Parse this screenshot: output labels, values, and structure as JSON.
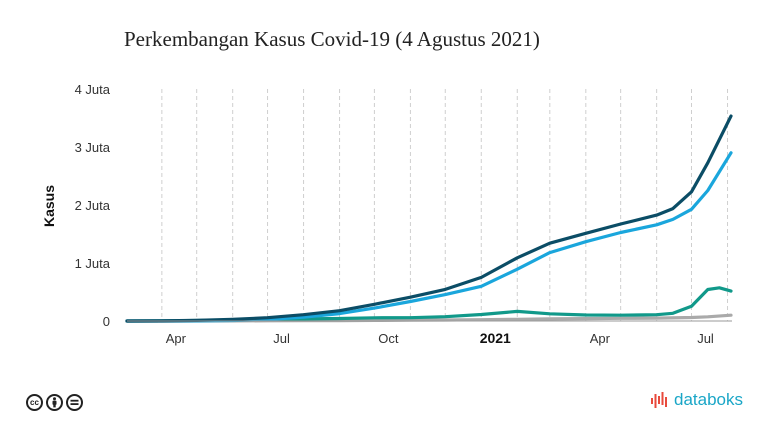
{
  "title": "Perkembangan Kasus Covid-19 (4 Agustus 2021)",
  "brand": "databoks",
  "license_icons": [
    "cc-icon",
    "attribution-icon",
    "no-derivatives-icon"
  ],
  "chart_data": {
    "type": "line",
    "title": "Perkembangan Kasus Covid-19 (4 Agustus 2021)",
    "ylabel": "Kasus",
    "xlabel": "",
    "xlim": [
      "2020-03-02",
      "2021-08-04"
    ],
    "ylim": [
      0,
      4000000
    ],
    "yticks": [
      {
        "value": 0,
        "label": "0"
      },
      {
        "value": 1000000,
        "label": "1 Juta"
      },
      {
        "value": 2000000,
        "label": "2 Juta"
      },
      {
        "value": 3000000,
        "label": "3 Juta"
      },
      {
        "value": 4000000,
        "label": "4 Juta"
      }
    ],
    "xticks": [
      {
        "date": "2020-04-01",
        "label": "Apr",
        "bold": false
      },
      {
        "date": "2020-07-01",
        "label": "Jul",
        "bold": false
      },
      {
        "date": "2020-10-01",
        "label": "Oct",
        "bold": false
      },
      {
        "date": "2021-01-01",
        "label": "2021",
        "bold": true
      },
      {
        "date": "2021-04-01",
        "label": "Apr",
        "bold": false
      },
      {
        "date": "2021-07-01",
        "label": "Jul",
        "bold": false
      }
    ],
    "grid": "vertical-dashed",
    "legend": "none",
    "series": [
      {
        "color": "#0b4d66",
        "points": [
          [
            "2020-03-02",
            0
          ],
          [
            "2020-04-01",
            1700
          ],
          [
            "2020-05-01",
            10500
          ],
          [
            "2020-06-01",
            27000
          ],
          [
            "2020-07-01",
            57000
          ],
          [
            "2020-08-01",
            109000
          ],
          [
            "2020-09-01",
            177000
          ],
          [
            "2020-10-01",
            288000
          ],
          [
            "2020-11-01",
            410000
          ],
          [
            "2020-12-01",
            544000
          ],
          [
            "2021-01-01",
            751000
          ],
          [
            "2021-02-01",
            1089000
          ],
          [
            "2021-03-01",
            1341000
          ],
          [
            "2021-04-01",
            1512000
          ],
          [
            "2021-05-01",
            1672000
          ],
          [
            "2021-06-01",
            1826000
          ],
          [
            "2021-06-15",
            1938000
          ],
          [
            "2021-07-01",
            2228000
          ],
          [
            "2021-07-15",
            2727000
          ],
          [
            "2021-08-04",
            3532000
          ]
        ]
      },
      {
        "color": "#1aa6dc",
        "points": [
          [
            "2020-03-02",
            0
          ],
          [
            "2020-04-01",
            100
          ],
          [
            "2020-05-01",
            2000
          ],
          [
            "2020-06-01",
            8000
          ],
          [
            "2020-07-01",
            26000
          ],
          [
            "2020-08-01",
            68000
          ],
          [
            "2020-09-01",
            127000
          ],
          [
            "2020-10-01",
            223000
          ],
          [
            "2020-11-01",
            337000
          ],
          [
            "2020-12-01",
            455000
          ],
          [
            "2021-01-01",
            598000
          ],
          [
            "2021-02-01",
            893000
          ],
          [
            "2021-03-01",
            1180000
          ],
          [
            "2021-04-01",
            1367000
          ],
          [
            "2021-05-01",
            1526000
          ],
          [
            "2021-06-01",
            1659000
          ],
          [
            "2021-06-15",
            1751000
          ],
          [
            "2021-07-01",
            1925000
          ],
          [
            "2021-07-15",
            2250000
          ],
          [
            "2021-08-04",
            2900000
          ]
        ]
      },
      {
        "color": "#11998a",
        "points": [
          [
            "2020-03-02",
            0
          ],
          [
            "2020-04-01",
            1500
          ],
          [
            "2020-05-01",
            8000
          ],
          [
            "2020-06-01",
            17000
          ],
          [
            "2020-07-01",
            28000
          ],
          [
            "2020-08-01",
            37000
          ],
          [
            "2020-09-01",
            43000
          ],
          [
            "2020-10-01",
            55000
          ],
          [
            "2020-11-01",
            57000
          ],
          [
            "2020-12-01",
            74000
          ],
          [
            "2021-01-01",
            112000
          ],
          [
            "2021-02-01",
            166000
          ],
          [
            "2021-03-01",
            125000
          ],
          [
            "2021-04-01",
            104000
          ],
          [
            "2021-05-01",
            100000
          ],
          [
            "2021-06-01",
            108000
          ],
          [
            "2021-06-15",
            133000
          ],
          [
            "2021-07-01",
            253000
          ],
          [
            "2021-07-15",
            543000
          ],
          [
            "2021-07-25",
            573000
          ],
          [
            "2021-08-04",
            515000
          ]
        ]
      },
      {
        "color": "#aaaaaa",
        "points": [
          [
            "2020-03-02",
            0
          ],
          [
            "2020-04-01",
            100
          ],
          [
            "2020-05-01",
            700
          ],
          [
            "2020-06-01",
            1600
          ],
          [
            "2020-07-01",
            2900
          ],
          [
            "2020-08-01",
            5200
          ],
          [
            "2020-09-01",
            7500
          ],
          [
            "2020-10-01",
            10500
          ],
          [
            "2020-11-01",
            14000
          ],
          [
            "2020-12-01",
            16500
          ],
          [
            "2021-01-01",
            22000
          ],
          [
            "2021-02-01",
            30000
          ],
          [
            "2021-03-01",
            36000
          ],
          [
            "2021-04-01",
            41000
          ],
          [
            "2021-05-01",
            46000
          ],
          [
            "2021-06-01",
            50000
          ],
          [
            "2021-07-01",
            60000
          ],
          [
            "2021-07-15",
            73000
          ],
          [
            "2021-08-04",
            100000
          ]
        ]
      }
    ]
  }
}
